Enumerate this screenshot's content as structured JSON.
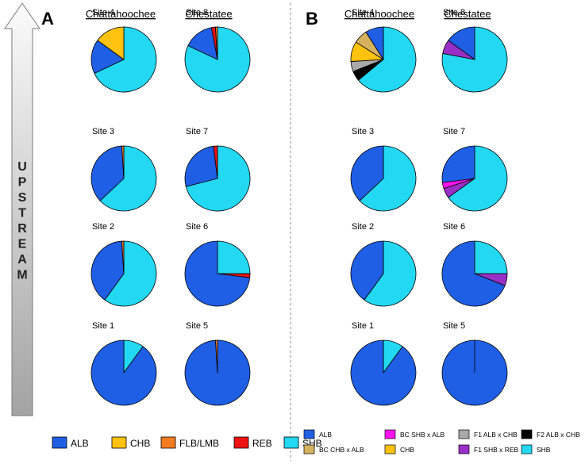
{
  "figure": {
    "panel_a_label": "A",
    "panel_b_label": "B",
    "arrow_text": "UPSTREAM",
    "columns": [
      "Chattahoochee",
      "Chestatee"
    ]
  },
  "colors": {
    "ALB": "#1f5fe6",
    "CHB": "#ffc20e",
    "FLB/LMB": "#f47a20",
    "REB": "#ee1111",
    "SHB": "#22d8f2",
    "BC CHB x ALB": "#d6b25f",
    "BC SHB x ALB": "#ff14f0",
    "F1 ALB x CHB": "#a9a9a9",
    "F1 SHB x REB": "#9a2fc7",
    "F2 ALB x CHB": "#000000"
  },
  "chart_data": [
    {
      "type": "pie",
      "panel": "A",
      "title": "A",
      "legend": [
        "ALB",
        "CHB",
        "FLB/LMB",
        "REB",
        "SHB"
      ],
      "legend_placement": "bottom",
      "charts": [
        {
          "site": "Site 4",
          "river": "Chattahoochee",
          "slices": [
            {
              "label": "SHB",
              "value": 68
            },
            {
              "label": "ALB",
              "value": 17
            },
            {
              "label": "CHB",
              "value": 15
            }
          ]
        },
        {
          "site": "Site 8",
          "river": "Chestatee",
          "slices": [
            {
              "label": "SHB",
              "value": 82
            },
            {
              "label": "ALB",
              "value": 15
            },
            {
              "label": "REB",
              "value": 2
            },
            {
              "label": "FLB/LMB",
              "value": 1
            }
          ]
        },
        {
          "site": "Site 3",
          "river": "Chattahoochee",
          "slices": [
            {
              "label": "SHB",
              "value": 63
            },
            {
              "label": "ALB",
              "value": 36
            },
            {
              "label": "FLB/LMB",
              "value": 1
            }
          ]
        },
        {
          "site": "Site 7",
          "river": "Chestatee",
          "slices": [
            {
              "label": "SHB",
              "value": 71
            },
            {
              "label": "ALB",
              "value": 27
            },
            {
              "label": "REB",
              "value": 2
            }
          ]
        },
        {
          "site": "Site 2",
          "river": "Chattahoochee",
          "slices": [
            {
              "label": "SHB",
              "value": 60
            },
            {
              "label": "ALB",
              "value": 39
            },
            {
              "label": "FLB/LMB",
              "value": 1
            }
          ]
        },
        {
          "site": "Site 6",
          "river": "Chestatee",
          "slices": [
            {
              "label": "SHB",
              "value": 25
            },
            {
              "label": "REB",
              "value": 2
            },
            {
              "label": "ALB",
              "value": 73
            }
          ]
        },
        {
          "site": "Site 1",
          "river": "Chattahoochee",
          "slices": [
            {
              "label": "SHB",
              "value": 10
            },
            {
              "label": "ALB",
              "value": 90
            }
          ]
        },
        {
          "site": "Site 5",
          "river": "Chestatee",
          "slices": [
            {
              "label": "ALB",
              "value": 99
            },
            {
              "label": "FLB/LMB",
              "value": 1
            }
          ]
        }
      ]
    },
    {
      "type": "pie",
      "panel": "B",
      "title": "B",
      "legend": [
        "ALB",
        "BC CHB x ALB",
        "BC SHB x ALB",
        "CHB",
        "F1 ALB x CHB",
        "F1 SHB x REB",
        "F2 ALB x CHB",
        "SHB"
      ],
      "legend_placement": "bottom",
      "charts": [
        {
          "site": "Site 4",
          "river": "Chattahoochee",
          "slices": [
            {
              "label": "SHB",
              "value": 64
            },
            {
              "label": "F2 ALB x CHB",
              "value": 5
            },
            {
              "label": "F1 ALB x CHB",
              "value": 5
            },
            {
              "label": "CHB",
              "value": 10
            },
            {
              "label": "BC CHB x ALB",
              "value": 7
            },
            {
              "label": "ALB",
              "value": 9
            }
          ]
        },
        {
          "site": "Site 8",
          "river": "Chestatee",
          "slices": [
            {
              "label": "SHB",
              "value": 78
            },
            {
              "label": "F1 SHB x REB",
              "value": 7
            },
            {
              "label": "ALB",
              "value": 15
            }
          ]
        },
        {
          "site": "Site 3",
          "river": "Chattahoochee",
          "slices": [
            {
              "label": "SHB",
              "value": 63
            },
            {
              "label": "ALB",
              "value": 37
            }
          ]
        },
        {
          "site": "Site 7",
          "river": "Chestatee",
          "slices": [
            {
              "label": "SHB",
              "value": 65
            },
            {
              "label": "F1 SHB x REB",
              "value": 5
            },
            {
              "label": "BC SHB x ALB",
              "value": 3
            },
            {
              "label": "ALB",
              "value": 27
            }
          ]
        },
        {
          "site": "Site 2",
          "river": "Chattahoochee",
          "slices": [
            {
              "label": "SHB",
              "value": 60
            },
            {
              "label": "ALB",
              "value": 40
            }
          ]
        },
        {
          "site": "Site 6",
          "river": "Chestatee",
          "slices": [
            {
              "label": "SHB",
              "value": 25
            },
            {
              "label": "F1 SHB x REB",
              "value": 6
            },
            {
              "label": "ALB",
              "value": 69
            }
          ]
        },
        {
          "site": "Site 1",
          "river": "Chattahoochee",
          "slices": [
            {
              "label": "SHB",
              "value": 10
            },
            {
              "label": "ALB",
              "value": 90
            }
          ]
        },
        {
          "site": "Site 5",
          "river": "Chestatee",
          "slices": [
            {
              "label": "ALB",
              "value": 100
            }
          ]
        }
      ]
    }
  ]
}
